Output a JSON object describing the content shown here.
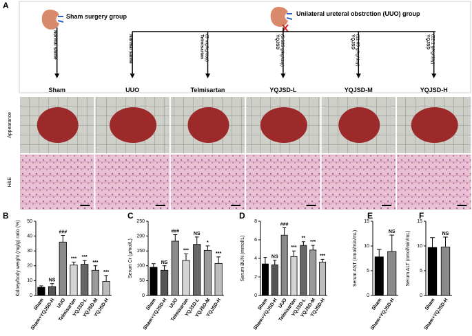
{
  "panel_a": {
    "letter": "A",
    "sham_group": "Sham surgery group",
    "uuo_group": "Unilateral ureteral obstrction (UUO) group",
    "arrows": [
      {
        "label": "Normal saline"
      },
      {
        "label": "Normal saline"
      },
      {
        "label": "Telmisartan",
        "dose": "(3 mg/kg/day)"
      },
      {
        "label": "YQJSD",
        "dose": "(5.525 g/kg/day)"
      },
      {
        "label": "YQJSD",
        "dose": "(11.05 g/kg/day)"
      },
      {
        "label": "YQJSD",
        "dose": "(22.1 g/kg/day)"
      }
    ],
    "groups": [
      "Sham",
      "UUO",
      "Telmisartan",
      "YQJSD-L",
      "YQJSD-M",
      "YQJSD-H"
    ],
    "rows": [
      "Appearance",
      "H&E"
    ]
  },
  "chart_data": [
    {
      "type": "bar",
      "letter": "B",
      "y_label": "Kidney/body weight (mg/g) ratio (%)",
      "categories": [
        "Sham",
        "Sham+YQJSD-H",
        "UUO",
        "Telmisartan",
        "YQJSD-L",
        "YQJSD-M",
        "YQJSD-H"
      ],
      "values": [
        5.5,
        6,
        36,
        20.5,
        21,
        17,
        9.5
      ],
      "errors": [
        1,
        2,
        4.5,
        2,
        2.5,
        3,
        4
      ],
      "annotations": [
        null,
        "NS",
        "###",
        "***",
        "***",
        "***",
        "***"
      ],
      "colors": [
        "#000000",
        "#555555",
        "#8a8a8a",
        "#d4d4d4",
        "#666666",
        "#9a9a9a",
        "#bdbdbd"
      ],
      "ylim": [
        0,
        50
      ],
      "yticks": [
        0,
        10,
        20,
        30,
        40,
        50
      ]
    },
    {
      "type": "bar",
      "letter": "C",
      "y_label": "Serum Cr (μmol/L)",
      "categories": [
        "Sham",
        "Sham+YQJSD-H",
        "UUO",
        "Telmisartan",
        "YQJSD-L",
        "YQJSD-M",
        "YQJSD-H"
      ],
      "values": [
        95,
        85,
        183,
        118,
        172,
        152,
        108
      ],
      "errors": [
        12,
        15,
        22,
        22,
        25,
        15,
        22
      ],
      "annotations": [
        null,
        "NS",
        "###",
        "***",
        "NS",
        "*",
        "***"
      ],
      "colors": [
        "#000000",
        "#555555",
        "#8a8a8a",
        "#d4d4d4",
        "#666666",
        "#9a9a9a",
        "#bdbdbd"
      ],
      "ylim": [
        0,
        250
      ],
      "yticks": [
        0,
        50,
        100,
        150,
        200,
        250
      ]
    },
    {
      "type": "bar",
      "letter": "D",
      "y_label": "Serum BUN (mmol/L)",
      "categories": [
        "Sham",
        "Sham+YQJSD-H",
        "UUO",
        "Telmisartan",
        "YQJSD-L",
        "YQJSD-M",
        "YQJSD-H"
      ],
      "values": [
        3.4,
        3.3,
        6.5,
        4.2,
        5.4,
        4.9,
        3.6
      ],
      "errors": [
        0.7,
        0.5,
        0.8,
        0.6,
        0.4,
        0.5,
        0.3
      ],
      "annotations": [
        null,
        "NS",
        "###",
        "***",
        "**",
        "***",
        "***"
      ],
      "colors": [
        "#000000",
        "#555555",
        "#8a8a8a",
        "#d4d4d4",
        "#666666",
        "#9a9a9a",
        "#bdbdbd"
      ],
      "ylim": [
        0,
        8
      ],
      "yticks": [
        0,
        2,
        4,
        6,
        8
      ]
    },
    {
      "type": "bar",
      "letter": "E",
      "y_label": "Serum AST (nmol/min/mL)",
      "categories": [
        "Sham",
        "Sham+YQJSD-H"
      ],
      "values": [
        7.8,
        8.9
      ],
      "errors": [
        1.5,
        3.3
      ],
      "annotations": [
        null,
        "NS"
      ],
      "colors": [
        "#000000",
        "#8a8a8a"
      ],
      "ylim": [
        0,
        15
      ],
      "yticks": [
        0,
        5,
        10,
        15
      ]
    },
    {
      "type": "bar",
      "letter": "F",
      "y_label": "Serum ALT (nmol/min/mL)",
      "categories": [
        "Sham",
        "Sham+YQJSD-H"
      ],
      "values": [
        9.7,
        9.8
      ],
      "errors": [
        2,
        2
      ],
      "annotations": [
        null,
        "NS"
      ],
      "colors": [
        "#000000",
        "#8a8a8a"
      ],
      "ylim": [
        0,
        15
      ],
      "yticks": [
        0,
        5,
        10,
        15
      ]
    }
  ]
}
